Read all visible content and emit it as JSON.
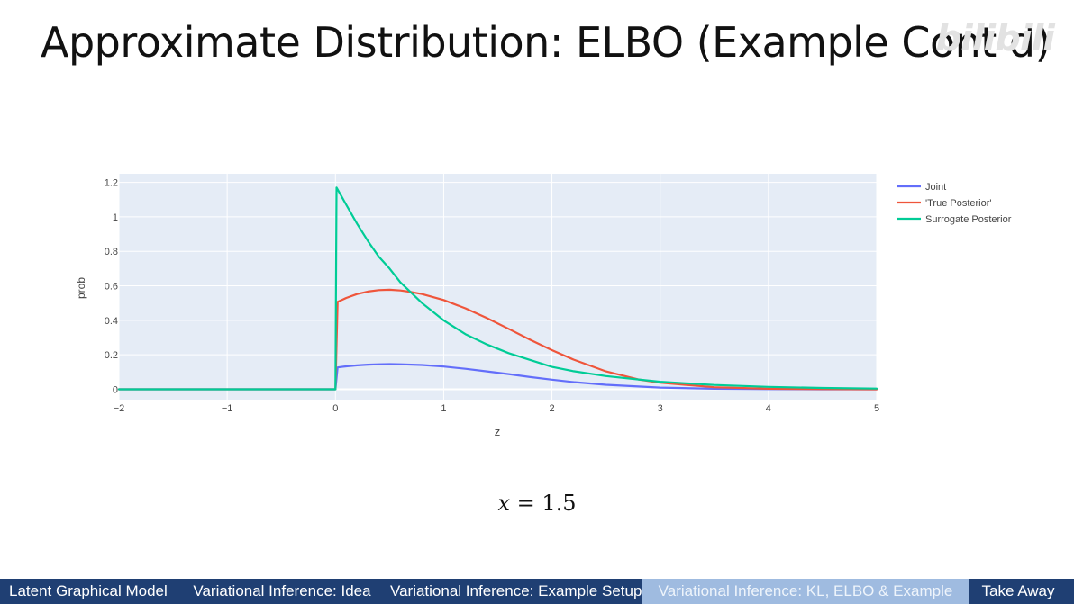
{
  "slide": {
    "title": "Approximate Distribution: ELBO (Example Cont’d)",
    "watermark": "bilibili",
    "equation_var": "x",
    "equation_rest": " = 1.5"
  },
  "nav": {
    "items": [
      {
        "label": "Latent Graphical Model",
        "active": false
      },
      {
        "label": "Variational Inference: Idea",
        "active": false
      },
      {
        "label": "Variational Inference: Example Setup",
        "active": false
      },
      {
        "label": "Variational Inference: KL, ELBO & Example",
        "active": true
      },
      {
        "label": "Take Away",
        "active": false
      }
    ]
  },
  "chart_data": {
    "type": "line",
    "xlabel": "z",
    "ylabel": "prob",
    "xlim": [
      -2,
      5
    ],
    "ylim": [
      -0.06,
      1.25
    ],
    "x_ticks": [
      -2,
      -1,
      0,
      1,
      2,
      3,
      4,
      5
    ],
    "x_tick_labels": [
      "−2",
      "−1",
      "0",
      "1",
      "2",
      "3",
      "4",
      "5"
    ],
    "y_ticks": [
      0,
      0.2,
      0.4,
      0.6,
      0.8,
      1,
      1.2
    ],
    "y_tick_labels": [
      "0",
      "0.2",
      "0.4",
      "0.6",
      "0.8",
      "1",
      "1.2"
    ],
    "grid": true,
    "legend_position": "top-right",
    "series": [
      {
        "name": "Joint",
        "color": "#636efa",
        "x": [
          -2,
          0,
          0.02,
          0.1,
          0.2,
          0.3,
          0.4,
          0.5,
          0.6,
          0.8,
          1.0,
          1.2,
          1.4,
          1.6,
          1.8,
          2.0,
          2.2,
          2.5,
          3.0,
          3.5,
          4.0,
          4.5,
          5.0
        ],
        "y": [
          0,
          0,
          0.127,
          0.133,
          0.139,
          0.143,
          0.145,
          0.146,
          0.145,
          0.141,
          0.132,
          0.119,
          0.104,
          0.088,
          0.071,
          0.056,
          0.042,
          0.026,
          0.01,
          0.003,
          0.001,
          0.0,
          0.0
        ]
      },
      {
        "name": "'True Posterior'",
        "color": "#ef553b",
        "x": [
          -2,
          0,
          0.02,
          0.1,
          0.2,
          0.3,
          0.4,
          0.5,
          0.6,
          0.7,
          0.8,
          1.0,
          1.2,
          1.4,
          1.6,
          1.8,
          2.0,
          2.2,
          2.5,
          2.8,
          3.0,
          3.5,
          4.0,
          4.5,
          5.0
        ],
        "y": [
          0,
          0,
          0.507,
          0.53,
          0.552,
          0.567,
          0.575,
          0.577,
          0.573,
          0.564,
          0.552,
          0.518,
          0.47,
          0.413,
          0.351,
          0.287,
          0.227,
          0.172,
          0.104,
          0.057,
          0.038,
          0.012,
          0.003,
          0.001,
          0.0
        ]
      },
      {
        "name": "Surrogate Posterior",
        "color": "#00cc96",
        "x": [
          -2,
          0,
          0.01,
          0.1,
          0.2,
          0.3,
          0.4,
          0.5,
          0.6,
          0.7,
          0.8,
          1.0,
          1.2,
          1.4,
          1.6,
          1.8,
          2.0,
          2.2,
          2.5,
          3.0,
          3.5,
          4.0,
          4.5,
          5.0
        ],
        "y": [
          0,
          0,
          1.17,
          1.07,
          0.96,
          0.86,
          0.77,
          0.7,
          0.62,
          0.56,
          0.5,
          0.4,
          0.32,
          0.26,
          0.21,
          0.17,
          0.13,
          0.105,
          0.077,
          0.044,
          0.025,
          0.014,
          0.008,
          0.004
        ]
      }
    ]
  }
}
